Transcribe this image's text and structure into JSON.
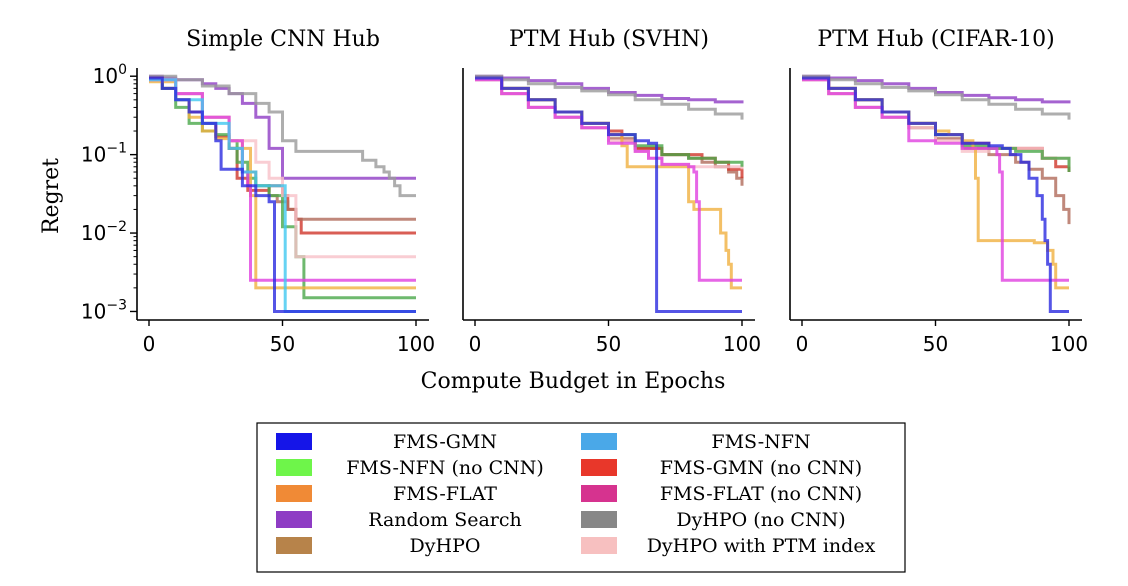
{
  "chart_data": {
    "type": "line",
    "xlabel": "Compute Budget in Epochs",
    "ylabel": "Regret",
    "xlim": [
      0,
      100
    ],
    "ylim": [
      0.00085,
      1.2
    ],
    "yscale": "log",
    "xticks": [
      "0",
      "50",
      "100"
    ],
    "yticks": [
      {
        "value": 1,
        "base": "10",
        "exp": "0"
      },
      {
        "value": 0.1,
        "base": "10",
        "exp": "−1"
      },
      {
        "value": 0.01,
        "base": "10",
        "exp": "−2"
      },
      {
        "value": 0.001,
        "base": "10",
        "exp": "−3"
      }
    ],
    "legend_location": "bottom-center",
    "legend": [
      {
        "name": "FMS-GMN",
        "color": "#1515e8"
      },
      {
        "name": "FMS-NFN",
        "color": "#4aa8e8"
      },
      {
        "name": "FMS-NFN (no CNN)",
        "color": "#6ef54a"
      },
      {
        "name": "FMS-GMN (no CNN)",
        "color": "#e8372a"
      },
      {
        "name": "FMS-FLAT",
        "color": "#f08a36"
      },
      {
        "name": "FMS-FLAT (no CNN)",
        "color": "#d6338f"
      },
      {
        "name": "Random Search",
        "color": "#8e3cc4"
      },
      {
        "name": "DyHPO (no CNN)",
        "color": "#878787"
      },
      {
        "name": "DyHPO",
        "color": "#b7834a"
      },
      {
        "name": "DyHPO with PTM index",
        "color": "#f7c0c0"
      }
    ],
    "panels": [
      {
        "title": "Simple CNN Hub",
        "series": [
          {
            "name": "Random Search",
            "color": "#8e3cc4",
            "x": [
              0,
              5,
              10,
              20,
              25,
              30,
              35,
              40,
              45,
              50,
              100
            ],
            "y": [
              1.0,
              0.95,
              0.9,
              0.8,
              0.7,
              0.6,
              0.45,
              0.3,
              0.12,
              0.05,
              0.05
            ]
          },
          {
            "name": "DyHPO (no CNN)",
            "color": "#9a9a9a",
            "x": [
              0,
              10,
              20,
              30,
              40,
              45,
              50,
              55,
              60,
              70,
              80,
              85,
              88,
              90,
              92,
              94,
              100
            ],
            "y": [
              1.0,
              0.9,
              0.75,
              0.6,
              0.45,
              0.35,
              0.15,
              0.11,
              0.11,
              0.11,
              0.085,
              0.07,
              0.06,
              0.05,
              0.04,
              0.03,
              0.03
            ]
          },
          {
            "name": "FMS-GMN (no CNN)",
            "color": "#d0362b",
            "x": [
              0,
              5,
              10,
              15,
              20,
              25,
              30,
              33,
              37,
              40,
              45,
              50,
              52,
              55,
              57,
              100
            ],
            "y": [
              0.95,
              0.7,
              0.5,
              0.35,
              0.25,
              0.17,
              0.12,
              0.05,
              0.035,
              0.035,
              0.04,
              0.03,
              0.02,
              0.015,
              0.01,
              0.01
            ]
          },
          {
            "name": "DyHPO",
            "color": "#b06a5a",
            "x": [
              0,
              10,
              20,
              30,
              35,
              40,
              45,
              48,
              52,
              55,
              100
            ],
            "y": [
              0.9,
              0.6,
              0.3,
              0.12,
              0.06,
              0.04,
              0.03,
              0.025,
              0.02,
              0.015,
              0.015
            ]
          },
          {
            "name": "FMS-NFN (no CNN)",
            "color": "#4aa84a",
            "x": [
              0,
              5,
              10,
              15,
              20,
              25,
              30,
              33,
              37,
              40,
              45,
              50,
              55,
              58,
              100
            ],
            "y": [
              0.9,
              0.7,
              0.4,
              0.25,
              0.2,
              0.18,
              0.15,
              0.08,
              0.05,
              0.04,
              0.03,
              0.012,
              0.005,
              0.0015,
              0.0015
            ]
          },
          {
            "name": "FMS-FLAT",
            "color": "#f0b040",
            "x": [
              0,
              10,
              15,
              20,
              25,
              30,
              35,
              38,
              40,
              45,
              100
            ],
            "y": [
              0.85,
              0.5,
              0.3,
              0.2,
              0.16,
              0.15,
              0.12,
              0.03,
              0.002,
              0.002,
              0.002
            ]
          },
          {
            "name": "DyHPO with PTM index",
            "color": "#f7c0c8",
            "x": [
              0,
              10,
              20,
              30,
              40,
              45,
              50,
              55,
              60,
              100
            ],
            "y": [
              0.9,
              0.6,
              0.3,
              0.15,
              0.08,
              0.05,
              0.03,
              0.005,
              0.005,
              0.005
            ]
          },
          {
            "name": "FMS-FLAT (no CNN)",
            "color": "#e040e0",
            "x": [
              0,
              10,
              20,
              30,
              35,
              37,
              38,
              100
            ],
            "y": [
              0.9,
              0.6,
              0.3,
              0.15,
              0.06,
              0.04,
              0.0025,
              0.0025
            ]
          },
          {
            "name": "FMS-NFN",
            "color": "#40c8f0",
            "x": [
              0,
              10,
              20,
              30,
              35,
              40,
              45,
              50,
              51,
              52,
              100
            ],
            "y": [
              0.9,
              0.5,
              0.25,
              0.12,
              0.06,
              0.04,
              0.04,
              0.04,
              0.001,
              0.001,
              0.001
            ]
          },
          {
            "name": "FMS-GMN",
            "color": "#2a2ae0",
            "x": [
              0,
              5,
              10,
              15,
              20,
              25,
              27,
              30,
              35,
              40,
              45,
              47,
              100
            ],
            "y": [
              0.95,
              0.7,
              0.5,
              0.35,
              0.25,
              0.15,
              0.065,
              0.065,
              0.04,
              0.03,
              0.025,
              0.001,
              0.001
            ]
          }
        ]
      },
      {
        "title": "PTM Hub (SVHN)",
        "series": [
          {
            "name": "Random Search",
            "color": "#8e3cc4",
            "x": [
              0,
              10,
              20,
              30,
              40,
              50,
              60,
              70,
              80,
              90,
              100
            ],
            "y": [
              1.0,
              0.95,
              0.88,
              0.8,
              0.7,
              0.62,
              0.57,
              0.52,
              0.5,
              0.47,
              0.45
            ]
          },
          {
            "name": "DyHPO (no CNN)",
            "color": "#9a9a9a",
            "x": [
              0,
              10,
              20,
              30,
              40,
              50,
              60,
              70,
              80,
              90,
              100
            ],
            "y": [
              1.0,
              0.9,
              0.8,
              0.72,
              0.65,
              0.58,
              0.5,
              0.44,
              0.38,
              0.33,
              0.28
            ]
          },
          {
            "name": "DyHPO",
            "color": "#b06a5a",
            "x": [
              0,
              10,
              20,
              30,
              40,
              50,
              60,
              70,
              80,
              85,
              90,
              95,
              98,
              100
            ],
            "y": [
              0.9,
              0.6,
              0.4,
              0.3,
              0.22,
              0.16,
              0.12,
              0.1,
              0.09,
              0.08,
              0.07,
              0.06,
              0.05,
              0.04
            ]
          },
          {
            "name": "FMS-GMN (no CNN)",
            "color": "#d0362b",
            "x": [
              0,
              10,
              20,
              30,
              40,
              50,
              55,
              60,
              70,
              80,
              85,
              90,
              95,
              100
            ],
            "y": [
              0.95,
              0.7,
              0.5,
              0.35,
              0.25,
              0.2,
              0.15,
              0.12,
              0.1,
              0.1,
              0.09,
              0.08,
              0.065,
              0.05
            ]
          },
          {
            "name": "DyHPO with PTM index",
            "color": "#f7c0c8",
            "x": [
              0,
              10,
              20,
              30,
              40,
              50,
              60,
              65,
              70,
              80,
              90,
              100
            ],
            "y": [
              0.9,
              0.6,
              0.4,
              0.3,
              0.22,
              0.15,
              0.11,
              0.09,
              0.075,
              0.07,
              0.07,
              0.065
            ]
          },
          {
            "name": "FMS-NFN (no CNN)",
            "color": "#4aa84a",
            "x": [
              0,
              10,
              20,
              30,
              40,
              50,
              60,
              70,
              80,
              90,
              100
            ],
            "y": [
              0.95,
              0.7,
              0.5,
              0.35,
              0.25,
              0.18,
              0.13,
              0.1,
              0.09,
              0.08,
              0.07
            ]
          },
          {
            "name": "FMS-FLAT",
            "color": "#f0b040",
            "x": [
              0,
              10,
              20,
              30,
              40,
              50,
              55,
              57,
              60,
              65,
              70,
              75,
              80,
              82,
              90,
              92,
              94,
              95,
              96,
              100
            ],
            "y": [
              0.95,
              0.7,
              0.5,
              0.35,
              0.25,
              0.18,
              0.13,
              0.07,
              0.07,
              0.07,
              0.07,
              0.07,
              0.025,
              0.02,
              0.02,
              0.01,
              0.006,
              0.004,
              0.002,
              0.002
            ]
          },
          {
            "name": "FMS-FLAT (no CNN)",
            "color": "#e040e0",
            "x": [
              0,
              10,
              20,
              30,
              40,
              50,
              60,
              65,
              70,
              80,
              82,
              83,
              84,
              100
            ],
            "y": [
              0.9,
              0.6,
              0.4,
              0.3,
              0.22,
              0.14,
              0.11,
              0.09,
              0.075,
              0.07,
              0.06,
              0.025,
              0.0025,
              0.0025
            ]
          },
          {
            "name": "FMS-GMN",
            "color": "#2a2ae0",
            "x": [
              0,
              10,
              20,
              30,
              40,
              50,
              60,
              65,
              67,
              68,
              100
            ],
            "y": [
              0.95,
              0.7,
              0.5,
              0.35,
              0.25,
              0.18,
              0.15,
              0.14,
              0.14,
              0.001,
              0.001
            ]
          }
        ]
      },
      {
        "title": "PTM Hub (CIFAR-10)",
        "series": [
          {
            "name": "Random Search",
            "color": "#8e3cc4",
            "x": [
              0,
              10,
              20,
              30,
              40,
              50,
              60,
              70,
              80,
              90,
              100
            ],
            "y": [
              1.0,
              0.95,
              0.88,
              0.8,
              0.7,
              0.62,
              0.57,
              0.53,
              0.5,
              0.47,
              0.45
            ]
          },
          {
            "name": "DyHPO (no CNN)",
            "color": "#9a9a9a",
            "x": [
              0,
              10,
              20,
              30,
              40,
              50,
              60,
              70,
              80,
              90,
              100
            ],
            "y": [
              1.0,
              0.9,
              0.8,
              0.72,
              0.65,
              0.58,
              0.5,
              0.44,
              0.38,
              0.33,
              0.28
            ]
          },
          {
            "name": "DyHPO",
            "color": "#b06a5a",
            "x": [
              0,
              10,
              20,
              30,
              40,
              50,
              60,
              70,
              80,
              85,
              90,
              95,
              98,
              100
            ],
            "y": [
              0.9,
              0.6,
              0.4,
              0.3,
              0.22,
              0.16,
              0.12,
              0.1,
              0.08,
              0.065,
              0.05,
              0.03,
              0.02,
              0.013
            ]
          },
          {
            "name": "FMS-GMN (no CNN)",
            "color": "#d0362b",
            "x": [
              0,
              10,
              20,
              30,
              40,
              50,
              60,
              70,
              80,
              90,
              95,
              100
            ],
            "y": [
              0.95,
              0.7,
              0.5,
              0.35,
              0.25,
              0.18,
              0.14,
              0.12,
              0.12,
              0.09,
              0.07,
              0.06
            ]
          },
          {
            "name": "DyHPO with PTM index",
            "color": "#f7c0c8",
            "x": [
              0,
              10,
              20,
              30,
              40,
              50,
              60,
              70,
              80,
              90,
              100
            ],
            "y": [
              0.9,
              0.6,
              0.4,
              0.3,
              0.22,
              0.15,
              0.11,
              0.12,
              0.12,
              0.09,
              0.07
            ]
          },
          {
            "name": "FMS-NFN (no CNN)",
            "color": "#4aa84a",
            "x": [
              0,
              10,
              20,
              30,
              40,
              50,
              60,
              70,
              80,
              90,
              100
            ],
            "y": [
              0.95,
              0.7,
              0.5,
              0.35,
              0.25,
              0.18,
              0.13,
              0.12,
              0.11,
              0.09,
              0.06
            ]
          },
          {
            "name": "FMS-FLAT",
            "color": "#f0b040",
            "x": [
              0,
              10,
              20,
              30,
              40,
              50,
              55,
              60,
              64,
              65,
              66,
              70,
              80,
              86,
              87,
              90,
              92,
              94,
              95,
              100
            ],
            "y": [
              0.95,
              0.7,
              0.5,
              0.35,
              0.25,
              0.2,
              0.18,
              0.15,
              0.12,
              0.05,
              0.008,
              0.008,
              0.008,
              0.008,
              0.0075,
              0.0075,
              0.006,
              0.004,
              0.002,
              0.002
            ]
          },
          {
            "name": "FMS-FLAT (no CNN)",
            "color": "#e040e0",
            "x": [
              0,
              10,
              20,
              30,
              40,
              50,
              60,
              65,
              70,
              73,
              74,
              75,
              100
            ],
            "y": [
              0.9,
              0.6,
              0.4,
              0.3,
              0.15,
              0.14,
              0.12,
              0.12,
              0.12,
              0.1,
              0.06,
              0.0025,
              0.0025
            ]
          },
          {
            "name": "FMS-GMN",
            "color": "#2a2ae0",
            "x": [
              0,
              10,
              20,
              30,
              40,
              50,
              60,
              70,
              75,
              78,
              82,
              85,
              88,
              90,
              91,
              92,
              93,
              100
            ],
            "y": [
              0.95,
              0.7,
              0.5,
              0.35,
              0.25,
              0.18,
              0.14,
              0.13,
              0.12,
              0.1,
              0.08,
              0.05,
              0.03,
              0.015,
              0.008,
              0.004,
              0.001,
              0.001
            ]
          }
        ]
      }
    ]
  }
}
